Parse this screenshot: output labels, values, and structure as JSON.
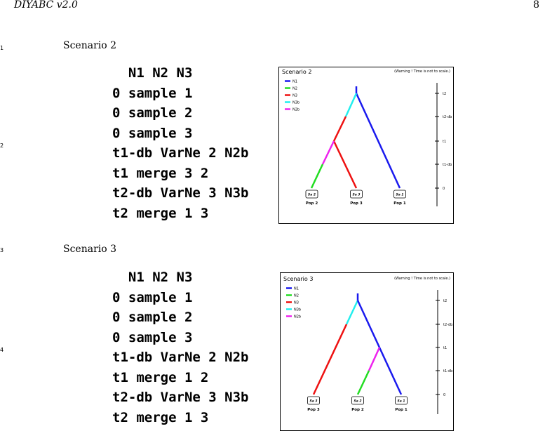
{
  "header": {
    "title": "DIYABC v2.0",
    "page": "8"
  },
  "line_numbers": [
    "1",
    "2",
    "3",
    "4"
  ],
  "scenarios": [
    {
      "heading": "Scenario 2",
      "code_lines": [
        "  N1 N2 N3",
        "0 sample 1",
        "0 sample 2",
        "0 sample 3",
        "t1-db VarNe 2 N2b",
        "t1 merge 3 2",
        "t2-db VarNe 3 N3b",
        "t2 merge 1 3"
      ],
      "figure": {
        "title": "Scenario 2",
        "warning": "(Warning ! Time is not to scale.)",
        "legend": [
          {
            "label": "N1",
            "color": "#1a1aee"
          },
          {
            "label": "N2",
            "color": "#22dd22"
          },
          {
            "label": "N3",
            "color": "#ee1111"
          },
          {
            "label": "N3b",
            "color": "#22eeee"
          },
          {
            "label": "N2b",
            "color": "#ee22ee"
          }
        ],
        "time_ticks": [
          "t2",
          "t2-db",
          "t1",
          "t1-db",
          "0"
        ],
        "samples": [
          {
            "box": "Sa 2",
            "pop": "Pop 2"
          },
          {
            "box": "Sa 3",
            "pop": "Pop 3"
          },
          {
            "box": "Sa 1",
            "pop": "Pop 1"
          }
        ]
      }
    },
    {
      "heading": "Scenario 3",
      "code_lines": [
        "  N1 N2 N3",
        "0 sample 1",
        "0 sample 2",
        "0 sample 3",
        "t1-db VarNe 2 N2b",
        "t1 merge 1 2",
        "t2-db VarNe 3 N3b",
        "t2 merge 1 3"
      ],
      "figure": {
        "title": "Scenario 3",
        "warning": "(Warning ! Time is not to scale.)",
        "legend": [
          {
            "label": "N1",
            "color": "#1a1aee"
          },
          {
            "label": "N2",
            "color": "#22dd22"
          },
          {
            "label": "N3",
            "color": "#ee1111"
          },
          {
            "label": "N3b",
            "color": "#22eeee"
          },
          {
            "label": "N2b",
            "color": "#ee22ee"
          }
        ],
        "time_ticks": [
          "t2",
          "t2-db",
          "t1",
          "t1-db",
          "0"
        ],
        "samples": [
          {
            "box": "Sa 3",
            "pop": "Pop 3"
          },
          {
            "box": "Sa 2",
            "pop": "Pop 2"
          },
          {
            "box": "Sa 1",
            "pop": "Pop 1"
          }
        ]
      }
    }
  ]
}
